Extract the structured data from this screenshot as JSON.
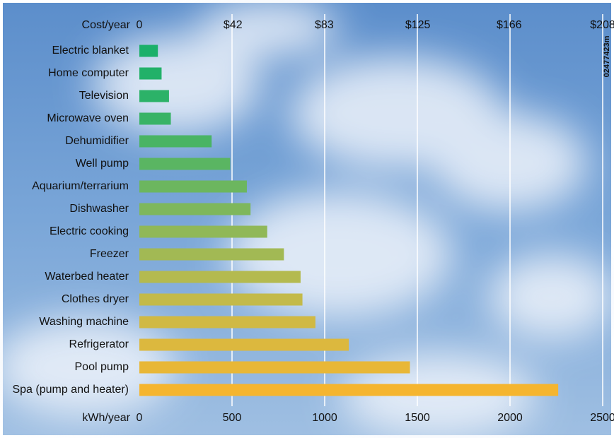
{
  "chart_data": {
    "type": "bar",
    "orientation": "horizontal",
    "xlabel": "kWh/year",
    "x2label": "Cost/year",
    "side_note": "02477423m",
    "categories": [
      "Electric blanket",
      "Home computer",
      "Television",
      "Microwave oven",
      "Dehumidifier",
      "Well pump",
      "Aquarium/terrarium",
      "Dishwasher",
      "Electric cooking",
      "Freezer",
      "Waterbed heater",
      "Clothes dryer",
      "Washing machine",
      "Refrigerator",
      "Pool pump",
      "Spa (pump and heater)"
    ],
    "values": [
      100,
      120,
      160,
      170,
      390,
      490,
      580,
      600,
      690,
      780,
      870,
      880,
      950,
      1130,
      1460,
      2260
    ],
    "colors": [
      "#1bb06a",
      "#22b169",
      "#2cb268",
      "#38b366",
      "#49b464",
      "#5ab562",
      "#6cb65f",
      "#7eb75c",
      "#90b858",
      "#a2b954",
      "#b4ba4f",
      "#c3ba4a",
      "#d0b944",
      "#dcb83e",
      "#e8b737",
      "#f5b52f"
    ],
    "xlim": [
      0,
      2500
    ],
    "xticks": [
      0,
      500,
      1000,
      1500,
      2000,
      2500
    ],
    "x2lim": [
      0,
      208
    ],
    "x2ticks": [
      0,
      {
        "value": 42,
        "label": "$42"
      },
      {
        "value": 83,
        "label": "$83"
      },
      {
        "value": 125,
        "label": "$125"
      },
      {
        "value": 166,
        "label": "$166"
      },
      {
        "value": 208,
        "label": "$208"
      }
    ],
    "grid": true
  }
}
